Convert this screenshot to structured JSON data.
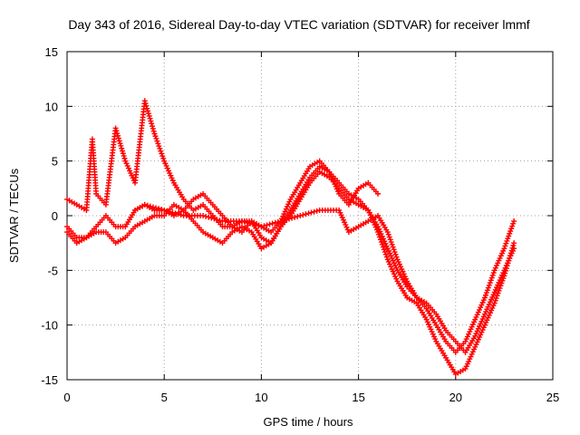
{
  "chart_data": {
    "type": "scatter",
    "title": "Day 343 of 2016, Sidereal Day-to-day VTEC variation (SDTVAR) for receiver lmmf",
    "xlabel": "GPS time / hours",
    "ylabel": "SDTVAR / TECUs",
    "xlim": [
      0,
      25
    ],
    "ylim": [
      -15,
      15
    ],
    "xticks": [
      "0",
      "5",
      "10",
      "15",
      "20",
      "25"
    ],
    "xtick_values": [
      0,
      5,
      10,
      15,
      20,
      25
    ],
    "yticks": [
      "15",
      "10",
      "5",
      "0",
      "-5",
      "-10",
      "-15"
    ],
    "ytick_values": [
      15,
      10,
      5,
      0,
      -5,
      -10,
      -15
    ],
    "grid": true,
    "marker": "+",
    "color": "#ff0000",
    "series": [
      {
        "name": "trace-1",
        "x": [
          0.0,
          0.5,
          1.0,
          1.3,
          1.5,
          2.0,
          2.5,
          3.0,
          3.5,
          4.0,
          4.5,
          5.0,
          5.5,
          6.0,
          6.5,
          7.0,
          7.5,
          8.0,
          8.5,
          9.0,
          9.5,
          10.0,
          10.5,
          11.0,
          11.5,
          12.0,
          12.5,
          13.0,
          13.5,
          14.0,
          14.5,
          15.0,
          15.5,
          16.0
        ],
        "y": [
          1.5,
          1.0,
          0.5,
          7.0,
          2.0,
          1.0,
          8.0,
          5.0,
          3.0,
          10.5,
          7.5,
          5.0,
          3.0,
          1.5,
          0.5,
          1.0,
          0.0,
          -1.0,
          -1.0,
          -0.5,
          -0.5,
          -1.0,
          -1.5,
          -0.5,
          1.5,
          3.0,
          4.5,
          5.0,
          4.0,
          2.0,
          1.0,
          2.5,
          3.0,
          2.0
        ]
      },
      {
        "name": "trace-2",
        "x": [
          0.0,
          0.5,
          1.0,
          1.5,
          2.0,
          2.5,
          3.0,
          3.5,
          4.0,
          4.5,
          5.0,
          5.5,
          6.0,
          6.5,
          7.0,
          7.5,
          8.0,
          8.5,
          9.0,
          9.5,
          10.0,
          10.5,
          11.0,
          11.5,
          12.0,
          12.5,
          13.0,
          13.5,
          14.0,
          14.5,
          15.0,
          15.5,
          16.0,
          16.5,
          17.0,
          17.5,
          18.0,
          18.5,
          19.0,
          19.5,
          20.0,
          20.5,
          21.0,
          21.5,
          22.0,
          22.5,
          23.0
        ],
        "y": [
          -1.0,
          -2.0,
          -2.0,
          -1.0,
          0.0,
          -1.0,
          -1.0,
          0.5,
          1.0,
          0.5,
          0.5,
          0.0,
          0.5,
          1.5,
          2.0,
          1.0,
          0.0,
          -1.0,
          -1.5,
          -0.5,
          -2.0,
          -2.5,
          -1.0,
          0.5,
          2.0,
          3.5,
          4.5,
          4.0,
          3.0,
          2.0,
          1.5,
          0.5,
          -1.0,
          -3.0,
          -5.0,
          -6.5,
          -7.5,
          -8.0,
          -9.0,
          -10.5,
          -11.5,
          -12.5,
          -11.0,
          -9.0,
          -7.0,
          -5.0,
          -3.0
        ]
      },
      {
        "name": "trace-3",
        "x": [
          0.0,
          0.5,
          1.0,
          1.5,
          2.0,
          2.5,
          3.0,
          3.5,
          4.0,
          4.5,
          5.0,
          5.5,
          6.0,
          6.5,
          7.0,
          7.5,
          8.0,
          8.5,
          9.0,
          9.5,
          10.0,
          10.5,
          11.0,
          11.5,
          12.0,
          12.5,
          13.0,
          13.5,
          14.0,
          14.5,
          15.0,
          15.5,
          16.0,
          16.5,
          17.0,
          17.5,
          18.0,
          18.5,
          19.0,
          19.5,
          20.0,
          20.5,
          21.0,
          21.5,
          22.0,
          22.5,
          23.0
        ],
        "y": [
          -1.5,
          -2.5,
          -2.0,
          -1.5,
          -1.5,
          -2.5,
          -2.0,
          -1.0,
          -0.5,
          0.0,
          0.0,
          1.0,
          0.5,
          -0.5,
          -1.5,
          -2.0,
          -2.5,
          -1.5,
          -1.0,
          -1.5,
          -3.0,
          -2.5,
          -1.0,
          0.0,
          1.5,
          3.0,
          4.0,
          3.5,
          2.5,
          1.5,
          1.0,
          0.5,
          -1.5,
          -4.0,
          -6.0,
          -7.5,
          -8.0,
          -9.5,
          -11.5,
          -13.0,
          -14.5,
          -14.0,
          -12.0,
          -10.0,
          -8.0,
          -5.5,
          -2.5
        ]
      },
      {
        "name": "trace-4",
        "x": [
          3.5,
          4.0,
          5.0,
          6.0,
          7.0,
          8.0,
          9.0,
          10.0,
          11.0,
          12.0,
          13.0,
          14.0,
          14.5,
          15.0,
          15.5,
          16.0,
          16.5,
          17.0,
          17.5,
          18.0,
          18.5,
          19.0,
          19.5,
          20.0,
          20.5,
          21.0,
          21.5,
          22.0,
          22.5,
          23.0
        ],
        "y": [
          0.5,
          1.0,
          0.5,
          0.0,
          0.0,
          -0.5,
          -0.5,
          -1.0,
          -0.5,
          0.0,
          0.5,
          0.5,
          -1.5,
          -1.0,
          -0.5,
          0.0,
          -1.5,
          -4.0,
          -6.0,
          -7.5,
          -8.5,
          -10.0,
          -11.5,
          -12.5,
          -11.5,
          -9.5,
          -7.5,
          -5.0,
          -3.0,
          -0.5
        ]
      }
    ]
  }
}
